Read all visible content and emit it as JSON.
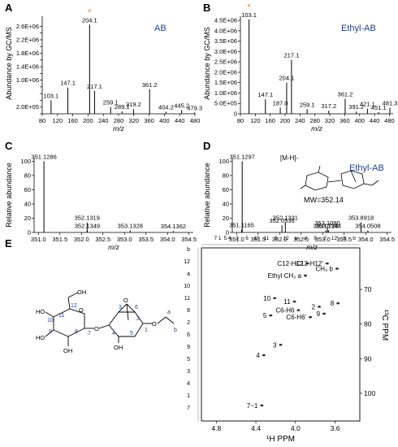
{
  "panels": {
    "A": {
      "letter": "A",
      "name": "AB"
    },
    "B": {
      "letter": "B",
      "name": "Ethyl-AB"
    },
    "C": {
      "letter": "C"
    },
    "D": {
      "letter": "D",
      "name": "Ethyl-AB",
      "mw": "MW=352.14",
      "mh_label": "[M-H]-"
    },
    "E": {
      "letter": "E"
    }
  },
  "colors": {
    "accent": "#1f3f8f",
    "star": "#f08c28",
    "line": "#000000",
    "grid": "#999999"
  },
  "chart_data": [
    {
      "panel": "A",
      "type": "bar",
      "xlabel": "m/z",
      "ylabel": "Abundance by GC/MS",
      "xlim": [
        80,
        480
      ],
      "xticks": [
        80,
        120,
        160,
        200,
        240,
        280,
        320,
        360,
        400,
        440,
        480
      ],
      "ylim": [
        0,
        2900000
      ],
      "yticks": [
        0,
        200000,
        400000,
        600000,
        800000,
        1000000,
        1200000,
        1400000,
        1600000,
        1800000,
        2000000,
        2200000,
        2400000,
        2600000
      ],
      "ytick_labels": [
        "",
        "2.0E+05",
        "",
        "",
        "",
        "1.0E+06",
        "",
        "1.4E+06",
        "",
        "1.8E+06",
        "",
        "2.2E+06",
        "",
        "2.6E+06"
      ],
      "peaks": [
        {
          "x": 103.1,
          "y": 400000,
          "label": "103.1"
        },
        {
          "x": 147.1,
          "y": 780000,
          "label": "147.1"
        },
        {
          "x": 204.1,
          "y": 2650000,
          "label": "204.1",
          "star": true
        },
        {
          "x": 217.1,
          "y": 680000,
          "label": "217.1"
        },
        {
          "x": 259.1,
          "y": 200000,
          "label": "259.1"
        },
        {
          "x": 289.1,
          "y": 70000,
          "label": "289.1"
        },
        {
          "x": 319.2,
          "y": 140000,
          "label": "319.2"
        },
        {
          "x": 361.2,
          "y": 730000,
          "label": "361.2"
        },
        {
          "x": 404.2,
          "y": 60000,
          "label": "404.2"
        },
        {
          "x": 445.2,
          "y": 110000,
          "label": "445.2"
        },
        {
          "x": 479.3,
          "y": 40000,
          "label": "479.3"
        }
      ]
    },
    {
      "panel": "B",
      "type": "bar",
      "xlabel": "m/z",
      "ylabel": "Abundance by GC/MS",
      "xlim": [
        80,
        490
      ],
      "xticks": [
        80,
        120,
        160,
        200,
        240,
        280,
        320,
        360,
        400,
        440,
        480
      ],
      "ylim": [
        0,
        4700000
      ],
      "yticks": [
        0,
        500000,
        1000000,
        1500000,
        2000000,
        2500000,
        3000000,
        3500000,
        4000000,
        4500000
      ],
      "ytick_labels": [
        "0",
        "5.0E+05",
        "1.0E+06",
        "1.5E+06",
        "2.0E+06",
        "2.5E+06",
        "3.0E+06",
        "3.5E+06",
        "4.0E+06",
        "4.5E+06"
      ],
      "peaks": [
        {
          "x": 103.1,
          "y": 4550000,
          "label": "103.1",
          "star": true
        },
        {
          "x": 147.1,
          "y": 700000,
          "label": "147.1"
        },
        {
          "x": 187.0,
          "y": 300000,
          "label": "187.0"
        },
        {
          "x": 204.1,
          "y": 1500000,
          "label": "204.1"
        },
        {
          "x": 217.1,
          "y": 2600000,
          "label": "217.1"
        },
        {
          "x": 259.1,
          "y": 220000,
          "label": "259.1"
        },
        {
          "x": 317.2,
          "y": 150000,
          "label": "317.2"
        },
        {
          "x": 361.2,
          "y": 720000,
          "label": "361.2"
        },
        {
          "x": 391.2,
          "y": 110000,
          "label": "391.2"
        },
        {
          "x": 421.1,
          "y": 250000,
          "label": "421.1"
        },
        {
          "x": 451.1,
          "y": 80000,
          "label": "451.1"
        },
        {
          "x": 481.3,
          "y": 300000,
          "label": "481.3"
        }
      ]
    },
    {
      "panel": "C",
      "type": "bar",
      "xlabel": "m/z",
      "ylabel": "Relative abundance",
      "xlim": [
        350.9,
        354.6
      ],
      "xticks": [
        351.0,
        351.5,
        352.0,
        352.5,
        353.0,
        353.5,
        354.0,
        354.5
      ],
      "xtick_labels": [
        "351.0",
        "351.5",
        "352.0",
        "352.5",
        "353.0",
        "353.5",
        "354.0",
        "354.5"
      ],
      "ylim": [
        0,
        105
      ],
      "yticks": [
        0,
        20,
        40,
        60,
        80,
        100
      ],
      "peaks": [
        {
          "x": 351.1286,
          "y": 100,
          "label": "351.1286"
        },
        {
          "x": 352.1319,
          "y": 14,
          "label": "352.1319"
        },
        {
          "x": 352.1349,
          "y": 3,
          "label": "352.1349"
        },
        {
          "x": 353.1328,
          "y": 3,
          "label": "353.1328"
        },
        {
          "x": 354.1362,
          "y": 2,
          "label": "354.1362"
        }
      ]
    },
    {
      "panel": "D",
      "type": "bar",
      "xlabel": "m/z",
      "ylabel": "Relative abundance",
      "xlim": [
        350.9,
        354.6
      ],
      "xticks": [
        351.0,
        351.5,
        352.0,
        352.5,
        353.0,
        353.5,
        354.0,
        354.5
      ],
      "xtick_labels": [
        "351.0",
        "351.5",
        "352.0",
        "352.5",
        "353.0",
        "353.5",
        "354.0",
        "354.5"
      ],
      "ylim": [
        0,
        105
      ],
      "yticks": [
        0,
        20,
        40,
        60,
        80,
        100
      ],
      "peaks": [
        {
          "x": 351.1297,
          "y": 100,
          "label": "351.1297"
        },
        {
          "x": 351.1165,
          "y": 4,
          "label": "351.1165"
        },
        {
          "x": 352.0536,
          "y": 10,
          "label": "352.0536"
        },
        {
          "x": 352.1331,
          "y": 14,
          "label": "352.1331"
        },
        {
          "x": 353.0728,
          "y": 3,
          "label": "353.0728"
        },
        {
          "x": 353.109,
          "y": 7,
          "label": "353.1090"
        },
        {
          "x": 353.1344,
          "y": 3,
          "label": "353.1344"
        },
        {
          "x": 353.8918,
          "y": 14,
          "label": "353.8918"
        },
        {
          "x": 354.0508,
          "y": 3,
          "label": "354.0508"
        }
      ]
    },
    {
      "panel": "E",
      "type": "scatter",
      "xlabel": "¹H PPM",
      "ylabel": "¹³C PPM",
      "xlim": [
        4.95,
        3.35
      ],
      "xticks": [
        4.8,
        4.4,
        4.0,
        3.6
      ],
      "xtick_labels": [
        "4.8",
        "4.4",
        "4.0",
        "3.6"
      ],
      "ylim": [
        58,
        108
      ],
      "yticks": [
        70,
        80,
        90,
        100
      ],
      "points": [
        {
          "x": 3.88,
          "y": 62.5,
          "label": "C12-H12"
        },
        {
          "x": 3.68,
          "y": 62.5,
          "label": "C12-H12'"
        },
        {
          "x": 3.58,
          "y": 64.0,
          "label": "CH₃ b"
        },
        {
          "x": 3.9,
          "y": 66.0,
          "label": "Ethyl CH₂ a"
        },
        {
          "x": 3.76,
          "y": 75.0,
          "label": "2"
        },
        {
          "x": 3.57,
          "y": 74.0,
          "label": "8"
        },
        {
          "x": 4.01,
          "y": 73.5,
          "label": "11"
        },
        {
          "x": 4.21,
          "y": 72.5,
          "label": "10"
        },
        {
          "x": 3.97,
          "y": 76.0,
          "label": "C6-H6"
        },
        {
          "x": 3.71,
          "y": 77.0,
          "label": "9"
        },
        {
          "x": 3.85,
          "y": 78.0,
          "label": "C6-H6'"
        },
        {
          "x": 4.25,
          "y": 77.5,
          "label": "5"
        },
        {
          "x": 4.15,
          "y": 86.0,
          "label": "3"
        },
        {
          "x": 4.32,
          "y": 89.0,
          "label": "4"
        },
        {
          "x": 4.34,
          "y": 103.5,
          "label": "7~1"
        }
      ],
      "left_labels": [
        "b",
        "12",
        "a",
        "10",
        "11",
        "8",
        "2",
        "6",
        "9",
        "5",
        "3",
        "4",
        "1",
        "7"
      ],
      "top_labels": [
        "7 1",
        "5 4",
        "3",
        "6",
        "10",
        "11",
        "5",
        "12",
        "a",
        "a'",
        "9",
        "2",
        "12'",
        "8",
        "b"
      ],
      "structure_numbers": [
        "12",
        "11",
        "10",
        "9",
        "8",
        "7",
        "3",
        "6",
        "5",
        "4",
        "2",
        "1",
        "a",
        "b"
      ],
      "oh_label": "OH",
      "ho_label": "HO",
      "o_label": "O"
    }
  ]
}
